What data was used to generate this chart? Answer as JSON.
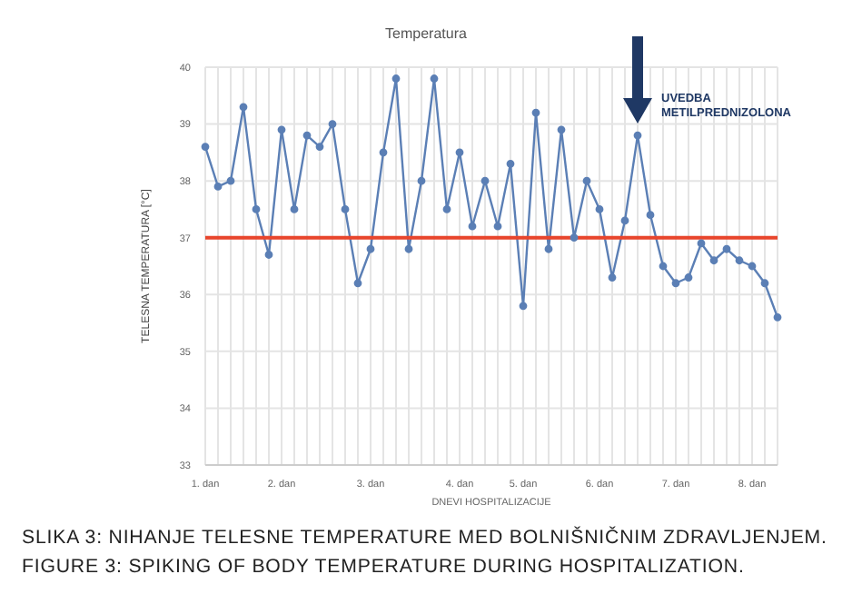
{
  "chart_data": {
    "type": "line",
    "title": "Temperatura",
    "xlabel": "DNEVI HOSPITALIZACIJE",
    "ylabel": "TELESNA TEMPERATURA [°C]",
    "categories": [
      "1. dan",
      null,
      null,
      null,
      null,
      null,
      "2. dan",
      null,
      null,
      null,
      null,
      null,
      null,
      "3. dan",
      null,
      null,
      null,
      null,
      null,
      null,
      "4. dan",
      null,
      null,
      null,
      null,
      "5. dan",
      null,
      null,
      null,
      null,
      null,
      "6. dan",
      null,
      null,
      null,
      null,
      null,
      "7. dan",
      null,
      null,
      null,
      null,
      null,
      "8. dan",
      null,
      null
    ],
    "series": [
      {
        "color": "#5b7fb5",
        "values": [
          38.6,
          37.9,
          38.0,
          39.3,
          37.5,
          36.7,
          38.9,
          37.5,
          38.8,
          38.6,
          39.0,
          37.5,
          36.2,
          36.8,
          38.5,
          39.8,
          36.8,
          38.0,
          39.8,
          37.5,
          38.5,
          37.2,
          38.0,
          37.2,
          38.3,
          35.8,
          39.2,
          36.8,
          38.9,
          37.0,
          38.0,
          37.5,
          36.3,
          37.3,
          38.8,
          37.4,
          36.5,
          36.2,
          36.3,
          36.9,
          36.6,
          36.8,
          36.6,
          36.5,
          36.2,
          35.6
        ]
      }
    ],
    "ylim": [
      33,
      40
    ],
    "yticks": [
      33,
      34,
      35,
      36,
      37,
      38,
      39,
      40
    ],
    "grid": true,
    "marker": "circle",
    "line_style": "solid",
    "ref_lines": [
      {
        "axis": "y",
        "value": 37,
        "color": "#e8452c"
      }
    ],
    "annotations": [
      "UVEDBA METILPREDNIZOLONA",
      "SLIKA 3: NIHANJE TELESNE TEMPERATURE MED BOLNIŠNIČNIM ZDRAVLJENJEM.",
      "FIGURE 3: SPIKING OF BODY TEMPERATURE DURING HOSPITALIZATION."
    ]
  }
}
